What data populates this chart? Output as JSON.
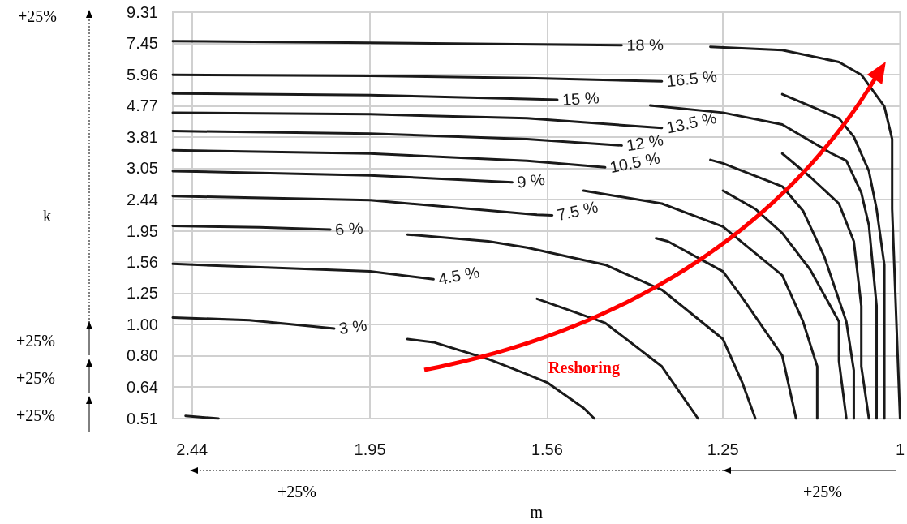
{
  "chart_data": {
    "type": "line",
    "xlabel": "m",
    "ylabel": "k",
    "log": "xy",
    "grid": true,
    "marker": "none",
    "line_style": "solid",
    "xlim": [
      2.5,
      1
    ],
    "xticks": [
      2.44,
      1.95,
      1.56,
      1.25,
      1
    ],
    "ylim": [
      0.51,
      9.31
    ],
    "yticks": [
      0.51,
      0.64,
      {
        "value": 0.8,
        "label": "0.80"
      },
      {
        "value": 1,
        "label": "1.00"
      },
      1.25,
      1.56,
      1.95,
      2.44,
      3.05,
      3.81,
      4.77,
      5.96,
      7.45,
      9.31
    ],
    "annotations": [
      "+25%",
      "+25%",
      "+25%",
      "+25%",
      "+25%",
      "+25%",
      "Reshoring"
    ],
    "series": [
      {
        "name": "18 %",
        "color": "#1a1a1a",
        "x": [
          2.5,
          1.95,
          1.42,
          1.35,
          1.27,
          1.16,
          1.08,
          1.05,
          1.02,
          1.01,
          1.01,
          1.0
        ],
        "values": [
          7.57,
          7.48,
          7.35,
          null,
          7.27,
          7.1,
          6.52,
          5.95,
          4.75,
          3.76,
          2.28,
          0.51
        ]
      },
      {
        "name": "16.5 %",
        "color": "#1a1a1a",
        "x": [
          2.5,
          1.95,
          1.6,
          1.35,
          1.25,
          1.16,
          1.08,
          1.06,
          1.04,
          1.03,
          1.02,
          1.02
        ],
        "values": [
          5.95,
          5.91,
          5.81,
          5.68,
          null,
          5.18,
          4.36,
          3.82,
          2.99,
          2.28,
          1.53,
          0.51
        ]
      },
      {
        "name": "15 %",
        "color": "#1a1a1a",
        "x": [
          2.5,
          1.95,
          1.6,
          1.54,
          1.45,
          1.37,
          1.25,
          1.16,
          1.09,
          1.07,
          1.05,
          1.04,
          1.03,
          1.03
        ],
        "values": [
          5.21,
          5.15,
          5.01,
          4.98,
          null,
          4.78,
          4.54,
          4.17,
          3.39,
          3.22,
          2.56,
          2.03,
          1.14,
          0.51
        ]
      },
      {
        "name": "13.5 %",
        "color": "#1a1a1a",
        "x": [
          2.5,
          1.95,
          1.6,
          1.35,
          1.25,
          1.16,
          1.12,
          1.08,
          1.06,
          1.05,
          1.05,
          1.04
        ],
        "values": [
          4.54,
          4.49,
          4.36,
          4.07,
          null,
          3.39,
          2.87,
          2.37,
          1.81,
          1.14,
          0.74,
          0.51
        ]
      },
      {
        "name": "12 %",
        "color": "#1a1a1a",
        "x": [
          2.5,
          1.95,
          1.6,
          1.42,
          1.33,
          1.27,
          1.25,
          1.16,
          1.13,
          1.1,
          1.07,
          1.06,
          1.06
        ],
        "values": [
          3.98,
          3.91,
          3.76,
          3.59,
          null,
          3.24,
          3.16,
          2.68,
          2.25,
          1.62,
          1.02,
          0.72,
          0.51
        ]
      },
      {
        "name": "10.5 %",
        "color": "#1a1a1a",
        "x": [
          2.5,
          1.95,
          1.6,
          1.45,
          1.35,
          1.25,
          1.2,
          1.16,
          1.12,
          1.08,
          1.08,
          1.07
        ],
        "values": [
          3.47,
          3.39,
          3.22,
          3.07,
          null,
          2.6,
          2.28,
          1.92,
          1.48,
          1.02,
          0.77,
          0.51
        ]
      },
      {
        "name": "9 %",
        "color": "#1a1a1a",
        "x": [
          2.5,
          1.95,
          1.63,
          1.56,
          1.49,
          1.35,
          1.25,
          1.16,
          1.13,
          1.11,
          1.11
        ],
        "values": [
          2.99,
          2.9,
          2.76,
          null,
          2.6,
          2.37,
          2.01,
          1.42,
          1.02,
          0.74,
          0.51
        ]
      },
      {
        "name": "7.5 %",
        "color": "#1a1a1a",
        "x": [
          2.5,
          1.95,
          1.58,
          1.55,
          1.45,
          1.36,
          1.34,
          1.25,
          1.22,
          1.16,
          1.14
        ],
        "values": [
          2.5,
          2.43,
          2.19,
          2.18,
          null,
          1.85,
          1.81,
          1.46,
          1.21,
          0.8,
          0.51
        ]
      },
      {
        "name": "6 %",
        "color": "#1a1a1a",
        "x": [
          2.5,
          2.24,
          2.05,
          1.95,
          1.86,
          1.68,
          1.6,
          1.45,
          1.35,
          1.25,
          1.22,
          1.2
        ],
        "values": [
          2.02,
          2.0,
          1.97,
          null,
          1.9,
          1.81,
          1.73,
          1.53,
          1.28,
          0.9,
          0.66,
          0.51
        ]
      },
      {
        "name": "4.5 %",
        "color": "#1a1a1a",
        "x": [
          2.5,
          1.95,
          1.8,
          1.68,
          1.58,
          1.45,
          1.35,
          1.29
        ],
        "values": [
          1.54,
          1.46,
          1.38,
          null,
          1.2,
          1.01,
          0.74,
          0.51
        ]
      },
      {
        "name": "3 %",
        "color": "#1a1a1a",
        "x": [
          2.5,
          2.27,
          2.04,
          1.95,
          1.86,
          1.8,
          1.68,
          1.6,
          1.56,
          1.49,
          1.47
        ],
        "values": [
          1.05,
          1.03,
          0.97,
          null,
          0.9,
          0.88,
          0.78,
          0.7,
          0.66,
          0.55,
          0.51
        ]
      },
      {
        "color": "#1a1a1a",
        "x": [
          2.46,
          2.36
        ],
        "values": [
          0.52,
          0.51
        ]
      }
    ]
  }
}
